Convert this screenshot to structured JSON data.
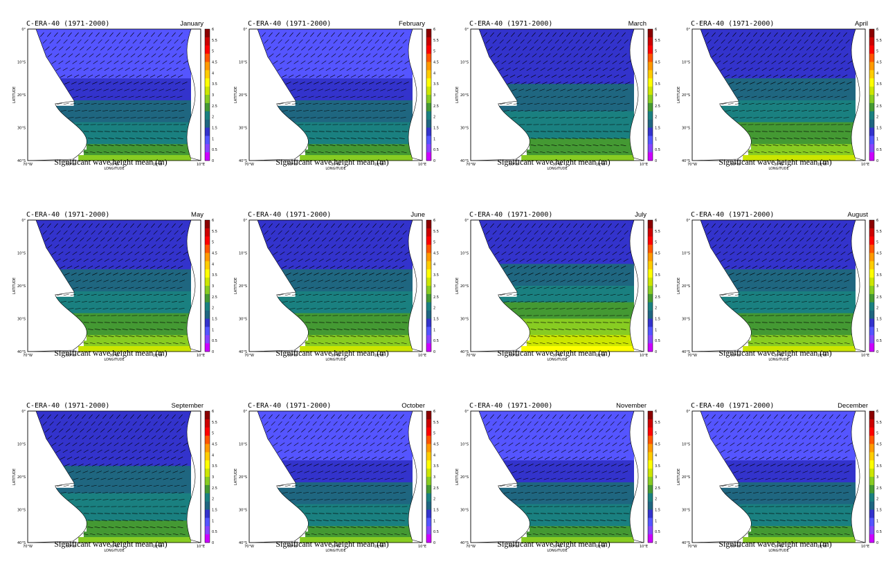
{
  "panel_title": "C-ERA-40 (1971-2000)",
  "caption": "Significant wave height mean (m)",
  "months": [
    "January",
    "February",
    "March",
    "April",
    "May",
    "June",
    "July",
    "August",
    "September",
    "October",
    "November",
    "December"
  ],
  "map": {
    "lon_ticks": [
      "70°W",
      "50°W",
      "30°W",
      "10°W",
      "10°E"
    ],
    "lat_ticks": [
      "0°",
      "10°S",
      "20°S",
      "30°S",
      "40°S"
    ],
    "xlabel": "LONGITUDE",
    "ylabel": "LATITUDE",
    "lon_range": [
      -70,
      15
    ],
    "lat_range": [
      -40,
      0
    ]
  },
  "colorbar": {
    "labels": [
      "6",
      "5.5",
      "5",
      "4.5",
      "4",
      "3.5",
      "3",
      "2.5",
      "2",
      "1.5",
      "1",
      "0.5",
      "0"
    ],
    "colors_top_to_bottom": [
      "#8b0000",
      "#cc0000",
      "#ff0000",
      "#ff5500",
      "#ff9900",
      "#ffcc00",
      "#ffff00",
      "#cce600",
      "#88cc22",
      "#449933",
      "#1a8080",
      "#1f6680",
      "#3333cc",
      "#5555ff",
      "#8844ff",
      "#cc00ff"
    ]
  },
  "chart_data": {
    "type": "heatmap",
    "variable": "Significant wave height mean (m)",
    "value_ranges_m": {
      "January": {
        "north": [
          1.0,
          2.0
        ],
        "south": [
          2.0,
          3.5
        ]
      },
      "February": {
        "north": [
          1.0,
          2.0
        ],
        "south": [
          2.0,
          3.5
        ]
      },
      "March": {
        "north": [
          1.5,
          2.0
        ],
        "south": [
          2.0,
          3.5
        ]
      },
      "April": {
        "north": [
          1.5,
          2.0
        ],
        "south": [
          2.0,
          4.0
        ]
      },
      "May": {
        "north": [
          1.5,
          2.5
        ],
        "south": [
          2.0,
          4.0
        ]
      },
      "June": {
        "north": [
          1.5,
          2.5
        ],
        "south": [
          2.0,
          4.0
        ]
      },
      "July": {
        "north": [
          1.5,
          2.5
        ],
        "south": [
          2.0,
          4.5
        ]
      },
      "August": {
        "north": [
          1.5,
          2.5
        ],
        "south": [
          2.0,
          4.0
        ]
      },
      "September": {
        "north": [
          1.5,
          2.5
        ],
        "south": [
          2.0,
          3.5
        ]
      },
      "October": {
        "north": [
          1.0,
          2.5
        ],
        "south": [
          2.0,
          3.5
        ]
      },
      "November": {
        "north": [
          1.0,
          2.0
        ],
        "south": [
          2.0,
          3.5
        ]
      },
      "December": {
        "north": [
          1.0,
          2.0
        ],
        "south": [
          2.0,
          3.5
        ]
      }
    }
  }
}
